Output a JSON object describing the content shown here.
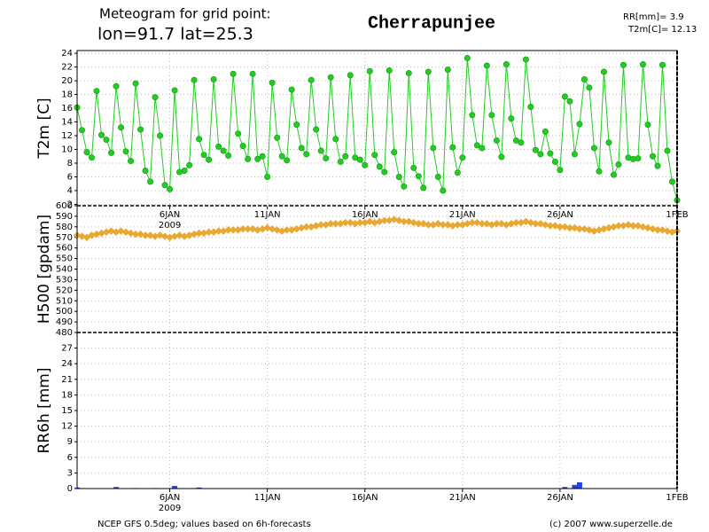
{
  "header": {
    "line1": "Meteogram for grid point:",
    "line2": "lon=91.7 lat=25.3",
    "place": "Cherrapunjee",
    "rr_total": "RR[mm]= 3.9",
    "t2m_mean": "T2m[C]= 12.13"
  },
  "footer": {
    "source": "NCEP GFS 0.5deg; values based on 6h-forecasts",
    "copyright": "(c) 2007 www.superzelle.de"
  },
  "chart_data": [
    {
      "type": "line",
      "ylabel": "T2m [C]",
      "color": "#22cc22",
      "grid": true,
      "xlim": [
        0.25,
        31
      ],
      "ylim": [
        1.8,
        24.4
      ],
      "xticks": [
        {
          "value": 5,
          "label": "6JAN"
        },
        {
          "value": 10,
          "label": "11JAN"
        },
        {
          "value": 15,
          "label": "16JAN"
        },
        {
          "value": 20,
          "label": "21JAN"
        },
        {
          "value": 25,
          "label": "26JAN"
        },
        {
          "value": 31,
          "label": "1FEB"
        }
      ],
      "year_label": "2009",
      "yticks": [
        2,
        4,
        6,
        8,
        10,
        12,
        14,
        16,
        18,
        20,
        22,
        24
      ],
      "x": [
        0.25,
        0.5,
        0.75,
        1,
        1.25,
        1.5,
        1.75,
        2,
        2.25,
        2.5,
        2.75,
        3,
        3.25,
        3.5,
        3.75,
        4,
        4.25,
        4.5,
        4.75,
        5,
        5.25,
        5.5,
        5.75,
        6,
        6.25,
        6.5,
        6.75,
        7,
        7.25,
        7.5,
        7.75,
        8,
        8.25,
        8.5,
        8.75,
        9,
        9.25,
        9.5,
        9.75,
        10,
        10.25,
        10.5,
        10.75,
        11,
        11.25,
        11.5,
        11.75,
        12,
        12.25,
        12.5,
        12.75,
        13,
        13.25,
        13.5,
        13.75,
        14,
        14.25,
        14.5,
        14.75,
        15,
        15.25,
        15.5,
        15.75,
        16,
        16.25,
        16.5,
        16.75,
        17,
        17.25,
        17.5,
        17.75,
        18,
        18.25,
        18.5,
        18.75,
        19,
        19.25,
        19.5,
        19.75,
        20,
        20.25,
        20.5,
        20.75,
        21,
        21.25,
        21.5,
        21.75,
        22,
        22.25,
        22.5,
        22.75,
        23,
        23.25,
        23.5,
        23.75,
        24,
        24.25,
        24.5,
        24.75,
        25,
        25.25,
        25.5,
        25.75,
        26,
        26.25,
        26.5,
        26.75,
        27,
        27.25,
        27.5,
        27.75,
        28,
        28.25,
        28.5,
        28.75,
        29,
        29.25,
        29.5,
        29.75,
        30,
        30.25,
        30.5,
        30.75,
        31
      ],
      "values": [
        16.1,
        12.8,
        9.6,
        8.8,
        18.5,
        12.1,
        11.4,
        9.5,
        19.2,
        13.2,
        9.7,
        8.3,
        19.6,
        12.9,
        6.9,
        5.3,
        17.6,
        12.0,
        4.8,
        4.2,
        18.6,
        6.7,
        6.9,
        7.7,
        20.1,
        11.5,
        9.2,
        8.5,
        20.2,
        10.4,
        9.8,
        9.1,
        21.0,
        12.3,
        10.5,
        8.6,
        21.0,
        8.6,
        9.0,
        6.0,
        19.7,
        11.7,
        9.0,
        8.4,
        18.7,
        13.6,
        10.2,
        9.3,
        20.1,
        12.9,
        9.8,
        8.7,
        20.5,
        11.5,
        8.2,
        9.0,
        20.8,
        8.8,
        8.5,
        7.7,
        21.4,
        9.2,
        7.5,
        6.7,
        21.5,
        9.6,
        6.0,
        4.6,
        21.1,
        7.3,
        6.1,
        4.4,
        21.3,
        10.2,
        6.0,
        4.0,
        21.6,
        10.3,
        6.6,
        8.8,
        23.3,
        15.0,
        10.6,
        10.2,
        22.2,
        15.0,
        11.3,
        8.9,
        22.4,
        14.5,
        11.3,
        11.0,
        23.1,
        16.2,
        9.9,
        9.3,
        12.6,
        9.4,
        8.2,
        7.0,
        17.7,
        17.0,
        9.3,
        13.7,
        20.2,
        19.0,
        10.2,
        6.8,
        21.3,
        11.0,
        6.3,
        7.8,
        22.3,
        8.8,
        8.6,
        8.7,
        22.4,
        13.6,
        9.0,
        7.6,
        22.3,
        9.8,
        5.3,
        2.6
      ]
    },
    {
      "type": "scatter",
      "ylabel": "H500 [gpdam]",
      "color": "#e8a832",
      "grid": true,
      "xlim": [
        0.25,
        31
      ],
      "ylim": [
        480,
        600
      ],
      "yticks": [
        480,
        490,
        500,
        510,
        520,
        530,
        540,
        550,
        560,
        570,
        580,
        590,
        600
      ],
      "x": [
        0.25,
        0.5,
        0.75,
        1,
        1.25,
        1.5,
        1.75,
        2,
        2.25,
        2.5,
        2.75,
        3,
        3.25,
        3.5,
        3.75,
        4,
        4.25,
        4.5,
        4.75,
        5,
        5.25,
        5.5,
        5.75,
        6,
        6.25,
        6.5,
        6.75,
        7,
        7.25,
        7.5,
        7.75,
        8,
        8.25,
        8.5,
        8.75,
        9,
        9.25,
        9.5,
        9.75,
        10,
        10.25,
        10.5,
        10.75,
        11,
        11.25,
        11.5,
        11.75,
        12,
        12.25,
        12.5,
        12.75,
        13,
        13.25,
        13.5,
        13.75,
        14,
        14.25,
        14.5,
        14.75,
        15,
        15.25,
        15.5,
        15.75,
        16,
        16.25,
        16.5,
        16.75,
        17,
        17.25,
        17.5,
        17.75,
        18,
        18.25,
        18.5,
        18.75,
        19,
        19.25,
        19.5,
        19.75,
        20,
        20.25,
        20.5,
        20.75,
        21,
        21.25,
        21.5,
        21.75,
        22,
        22.25,
        22.5,
        22.75,
        23,
        23.25,
        23.5,
        23.75,
        24,
        24.25,
        24.5,
        24.75,
        25,
        25.25,
        25.5,
        25.75,
        26,
        26.25,
        26.5,
        26.75,
        27,
        27.25,
        27.5,
        27.75,
        28,
        28.25,
        28.5,
        28.75,
        29,
        29.25,
        29.5,
        29.75,
        30,
        30.25,
        30.5,
        30.75,
        31
      ],
      "values": [
        572,
        571,
        570,
        572,
        573,
        574,
        575,
        576,
        575,
        576,
        575,
        574,
        573,
        573,
        572,
        572,
        571,
        572,
        571,
        570,
        571,
        572,
        571,
        572,
        573,
        574,
        574,
        575,
        575,
        576,
        576,
        577,
        577,
        577,
        578,
        578,
        578,
        577,
        578,
        579,
        578,
        577,
        576,
        577,
        577,
        578,
        579,
        580,
        580,
        581,
        582,
        582,
        583,
        583,
        583,
        584,
        584,
        583,
        584,
        584,
        585,
        584,
        585,
        586,
        586,
        587,
        586,
        585,
        585,
        584,
        583,
        583,
        582,
        582,
        583,
        582,
        582,
        581,
        582,
        582,
        583,
        584,
        584,
        583,
        583,
        582,
        583,
        583,
        582,
        583,
        584,
        584,
        585,
        584,
        583,
        583,
        582,
        581,
        581,
        580,
        580,
        579,
        579,
        578,
        578,
        577,
        576,
        577,
        578,
        579,
        580,
        581,
        581,
        582,
        581,
        581,
        580,
        579,
        578,
        577,
        577,
        576,
        575,
        576
      ]
    },
    {
      "type": "bar",
      "ylabel": "RR6h [mm]",
      "color": "#2244ee",
      "grid": true,
      "xlim": [
        0.25,
        31
      ],
      "ylim": [
        0,
        30
      ],
      "xticks": [
        {
          "value": 5,
          "label": "6JAN"
        },
        {
          "value": 10,
          "label": "11JAN"
        },
        {
          "value": 15,
          "label": "16JAN"
        },
        {
          "value": 20,
          "label": "21JAN"
        },
        {
          "value": 25,
          "label": "26JAN"
        },
        {
          "value": 31,
          "label": "1FEB"
        }
      ],
      "year_label": "2009",
      "yticks": [
        0,
        3,
        6,
        9,
        12,
        15,
        18,
        21,
        24,
        27
      ],
      "x": [
        0.25,
        2.25,
        3.25,
        4.25,
        5.25,
        6.5,
        25.25,
        25.75,
        26
      ],
      "values": [
        0.2,
        0.3,
        0.1,
        0.1,
        0.5,
        0.2,
        0.3,
        0.7,
        1.2
      ]
    }
  ]
}
